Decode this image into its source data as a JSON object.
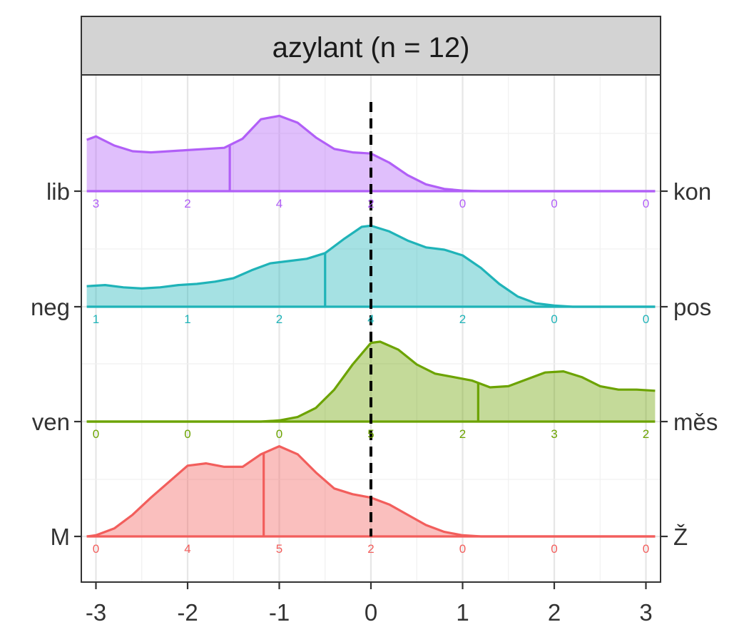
{
  "chart_data": {
    "type": "ridgeline",
    "title": "azylant (n = 12)",
    "xlabel": "",
    "ylabel": "",
    "x_ticks": [
      -3,
      -2,
      -1,
      0,
      1,
      2,
      3
    ],
    "x_tick_labels": [
      "-3",
      "-2",
      "-1",
      "0",
      "1",
      "2",
      "3"
    ],
    "xlim": [
      -3.1,
      3.1
    ],
    "count_x": [
      -3,
      -2,
      -1,
      0,
      1,
      2,
      3
    ],
    "reference_line_x": 0,
    "grid": true,
    "legend": "none",
    "series": [
      {
        "left_label": "lib",
        "right_label": "kon",
        "color": "#B15FF7",
        "counts": [
          "3",
          "2",
          "4",
          "2",
          "0",
          "0",
          "0"
        ],
        "mean": -1.54,
        "density": [
          [
            -3.1,
            0.45
          ],
          [
            -3.0,
            0.48
          ],
          [
            -2.8,
            0.4
          ],
          [
            -2.6,
            0.35
          ],
          [
            -2.4,
            0.34
          ],
          [
            -2.2,
            0.35
          ],
          [
            -2.0,
            0.36
          ],
          [
            -1.8,
            0.37
          ],
          [
            -1.6,
            0.38
          ],
          [
            -1.4,
            0.46
          ],
          [
            -1.2,
            0.63
          ],
          [
            -1.0,
            0.66
          ],
          [
            -0.8,
            0.6
          ],
          [
            -0.6,
            0.47
          ],
          [
            -0.4,
            0.37
          ],
          [
            -0.2,
            0.34
          ],
          [
            0.0,
            0.33
          ],
          [
            0.2,
            0.25
          ],
          [
            0.4,
            0.14
          ],
          [
            0.6,
            0.06
          ],
          [
            0.8,
            0.02
          ],
          [
            1.0,
            0.005
          ],
          [
            1.2,
            0.0
          ],
          [
            3.1,
            0.0
          ]
        ]
      },
      {
        "left_label": "neg",
        "right_label": "pos",
        "color": "#1FB3B8",
        "counts": [
          "1",
          "1",
          "2",
          "4",
          "2",
          "0",
          "0"
        ],
        "mean": -0.5,
        "density": [
          [
            -3.1,
            0.18
          ],
          [
            -2.9,
            0.19
          ],
          [
            -2.7,
            0.17
          ],
          [
            -2.5,
            0.16
          ],
          [
            -2.3,
            0.17
          ],
          [
            -2.1,
            0.19
          ],
          [
            -1.9,
            0.2
          ],
          [
            -1.7,
            0.22
          ],
          [
            -1.5,
            0.25
          ],
          [
            -1.3,
            0.32
          ],
          [
            -1.1,
            0.38
          ],
          [
            -0.9,
            0.4
          ],
          [
            -0.7,
            0.42
          ],
          [
            -0.5,
            0.47
          ],
          [
            -0.3,
            0.59
          ],
          [
            -0.1,
            0.7
          ],
          [
            0.0,
            0.71
          ],
          [
            0.2,
            0.66
          ],
          [
            0.4,
            0.58
          ],
          [
            0.6,
            0.52
          ],
          [
            0.8,
            0.5
          ],
          [
            1.0,
            0.45
          ],
          [
            1.2,
            0.34
          ],
          [
            1.4,
            0.2
          ],
          [
            1.6,
            0.09
          ],
          [
            1.8,
            0.03
          ],
          [
            2.0,
            0.01
          ],
          [
            2.2,
            0.0
          ],
          [
            3.1,
            0.0
          ]
        ]
      },
      {
        "left_label": "ven",
        "right_label": "měs",
        "color": "#6CA300",
        "counts": [
          "0",
          "0",
          "0",
          "5",
          "2",
          "3",
          "2"
        ],
        "mean": 1.17,
        "density": [
          [
            -3.1,
            0.0
          ],
          [
            -1.2,
            0.0
          ],
          [
            -1.0,
            0.01
          ],
          [
            -0.8,
            0.04
          ],
          [
            -0.6,
            0.12
          ],
          [
            -0.4,
            0.28
          ],
          [
            -0.2,
            0.5
          ],
          [
            0.0,
            0.69
          ],
          [
            0.1,
            0.7
          ],
          [
            0.3,
            0.63
          ],
          [
            0.5,
            0.5
          ],
          [
            0.7,
            0.42
          ],
          [
            0.9,
            0.39
          ],
          [
            1.1,
            0.36
          ],
          [
            1.3,
            0.3
          ],
          [
            1.5,
            0.31
          ],
          [
            1.7,
            0.37
          ],
          [
            1.9,
            0.43
          ],
          [
            2.1,
            0.44
          ],
          [
            2.3,
            0.39
          ],
          [
            2.5,
            0.31
          ],
          [
            2.7,
            0.28
          ],
          [
            2.9,
            0.28
          ],
          [
            3.1,
            0.27
          ]
        ]
      },
      {
        "left_label": "M",
        "right_label": "Ž",
        "color": "#F25E5C",
        "counts": [
          "0",
          "4",
          "5",
          "2",
          "0",
          "0",
          "0"
        ],
        "mean": -1.17,
        "density": [
          [
            -3.1,
            0.0
          ],
          [
            -3.0,
            0.01
          ],
          [
            -2.8,
            0.07
          ],
          [
            -2.6,
            0.19
          ],
          [
            -2.4,
            0.34
          ],
          [
            -2.2,
            0.48
          ],
          [
            -2.0,
            0.62
          ],
          [
            -1.8,
            0.64
          ],
          [
            -1.6,
            0.61
          ],
          [
            -1.4,
            0.61
          ],
          [
            -1.2,
            0.72
          ],
          [
            -1.0,
            0.79
          ],
          [
            -0.8,
            0.72
          ],
          [
            -0.6,
            0.56
          ],
          [
            -0.4,
            0.42
          ],
          [
            -0.2,
            0.37
          ],
          [
            0.0,
            0.34
          ],
          [
            0.2,
            0.28
          ],
          [
            0.4,
            0.19
          ],
          [
            0.6,
            0.1
          ],
          [
            0.8,
            0.04
          ],
          [
            1.0,
            0.01
          ],
          [
            1.2,
            0.0
          ],
          [
            3.1,
            0.0
          ]
        ]
      }
    ]
  }
}
